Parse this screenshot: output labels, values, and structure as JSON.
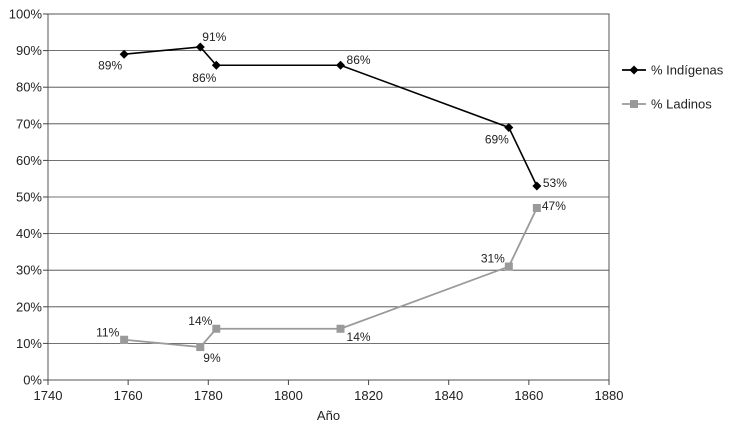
{
  "chart_data": {
    "type": "line",
    "xlabel": "Año",
    "ylabel": "",
    "xlim": [
      1740,
      1880
    ],
    "ylim": [
      0,
      100
    ],
    "x_ticks": [
      "1740",
      "1760",
      "1780",
      "1800",
      "1820",
      "1840",
      "1860",
      "1880"
    ],
    "y_ticks": [
      "0%",
      "10%",
      "20%",
      "30%",
      "40%",
      "50%",
      "60%",
      "70%",
      "80%",
      "90%",
      "100%"
    ],
    "grid": "horizontal",
    "legend_position": "right",
    "series": [
      {
        "name": "% Indígenas",
        "color": "#000000",
        "marker": "diamond",
        "points": [
          {
            "x": 1759,
            "y": 89,
            "label": "89%"
          },
          {
            "x": 1778,
            "y": 91,
            "label": "91%"
          },
          {
            "x": 1782,
            "y": 86,
            "label": "86%"
          },
          {
            "x": 1813,
            "y": 86,
            "label": "86%"
          },
          {
            "x": 1855,
            "y": 69,
            "label": "69%"
          },
          {
            "x": 1862,
            "y": 53,
            "label": "53%"
          }
        ]
      },
      {
        "name": "% Ladinos",
        "color": "#9a9a9a",
        "marker": "square",
        "points": [
          {
            "x": 1759,
            "y": 11,
            "label": "11%"
          },
          {
            "x": 1778,
            "y": 9,
            "label": "9%"
          },
          {
            "x": 1782,
            "y": 14,
            "label": "14%"
          },
          {
            "x": 1813,
            "y": 14,
            "label": "14%"
          },
          {
            "x": 1855,
            "y": 31,
            "label": "31%"
          },
          {
            "x": 1862,
            "y": 47,
            "label": "47%"
          }
        ]
      }
    ]
  }
}
